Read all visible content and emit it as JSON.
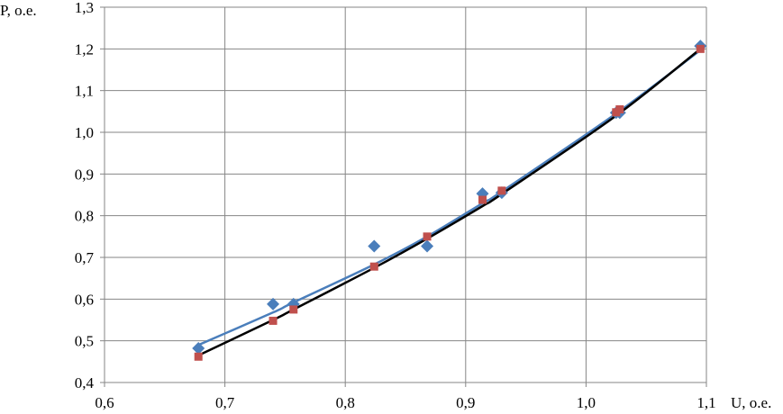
{
  "chart_data": {
    "type": "scatter",
    "xlabel": "U, o.e.",
    "ylabel": "P, o.e.",
    "xlim": [
      0.6,
      1.1
    ],
    "ylim": [
      0.4,
      1.3
    ],
    "xticks": [
      0.6,
      0.7,
      0.8,
      0.9,
      1.0,
      1.1
    ],
    "yticks": [
      0.4,
      0.5,
      0.6,
      0.7,
      0.8,
      0.9,
      1.0,
      1.1,
      1.2,
      1.3
    ],
    "xtick_labels": [
      "0,6",
      "0,7",
      "0,8",
      "0,9",
      "1,0",
      "1,1"
    ],
    "ytick_labels": [
      "0,4",
      "0,5",
      "0,6",
      "0,7",
      "0,8",
      "0,9",
      "1,0",
      "1,1",
      "1,2",
      "1,3"
    ],
    "grid": true,
    "legend": "none",
    "series": [
      {
        "marker": "diamond",
        "color": "#4a7ebb",
        "points": [
          [
            0.678,
            0.482
          ],
          [
            0.74,
            0.588
          ],
          [
            0.757,
            0.588
          ],
          [
            0.824,
            0.727
          ],
          [
            0.868,
            0.727
          ],
          [
            0.914,
            0.853
          ],
          [
            0.93,
            0.855
          ],
          [
            1.025,
            1.047
          ],
          [
            1.028,
            1.047
          ],
          [
            1.095,
            1.207
          ]
        ]
      },
      {
        "marker": "square",
        "color": "#c0504d",
        "points": [
          [
            0.678,
            0.462
          ],
          [
            0.74,
            0.548
          ],
          [
            0.757,
            0.575
          ],
          [
            0.824,
            0.678
          ],
          [
            0.868,
            0.75
          ],
          [
            0.914,
            0.838
          ],
          [
            0.93,
            0.86
          ],
          [
            1.025,
            1.048
          ],
          [
            1.028,
            1.055
          ],
          [
            1.095,
            1.2
          ]
        ]
      }
    ],
    "trendlines": [
      {
        "color": "#4a7ebb",
        "points": [
          [
            0.678,
            0.49
          ],
          [
            0.74,
            0.568
          ],
          [
            0.757,
            0.592
          ],
          [
            0.824,
            0.683
          ],
          [
            0.868,
            0.75
          ],
          [
            0.914,
            0.83
          ],
          [
            0.93,
            0.858
          ],
          [
            1.025,
            1.045
          ],
          [
            1.095,
            1.197
          ]
        ]
      },
      {
        "color": "#000000",
        "points": [
          [
            0.678,
            0.465
          ],
          [
            0.74,
            0.55
          ],
          [
            0.757,
            0.575
          ],
          [
            0.824,
            0.675
          ],
          [
            0.868,
            0.745
          ],
          [
            0.914,
            0.823
          ],
          [
            0.93,
            0.852
          ],
          [
            1.025,
            1.04
          ],
          [
            1.095,
            1.2
          ]
        ]
      }
    ]
  }
}
